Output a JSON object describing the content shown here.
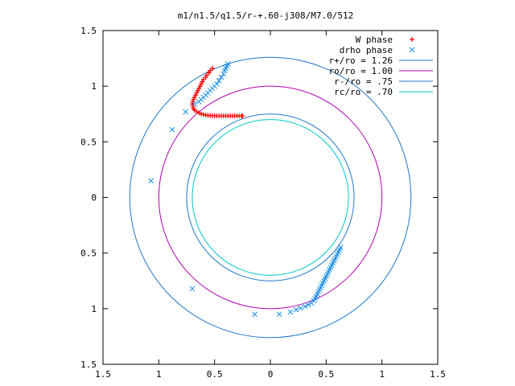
{
  "chart_data": {
    "type": "scatter",
    "title": "m1/n1.5/q1.5/r-+.60-j308/M7.0/512",
    "xlim": [
      -1.5,
      1.5
    ],
    "ylim": [
      -1.5,
      1.5
    ],
    "grid": false,
    "legend_position": "top-right",
    "x_ticks": [
      {
        "value": -1.5,
        "label": "1.5"
      },
      {
        "value": -1,
        "label": "1"
      },
      {
        "value": -0.5,
        "label": "0.5"
      },
      {
        "value": 0,
        "label": "0"
      },
      {
        "value": 0.5,
        "label": "0.5"
      },
      {
        "value": 1,
        "label": "1"
      },
      {
        "value": 1.5,
        "label": "1.5"
      }
    ],
    "y_ticks": [
      {
        "value": 1.5,
        "label": "1.5"
      },
      {
        "value": 1,
        "label": "1"
      },
      {
        "value": 0.5,
        "label": "0.5"
      },
      {
        "value": 0,
        "label": "0"
      },
      {
        "value": -0.5,
        "label": "0.5"
      },
      {
        "value": -1,
        "label": "1"
      },
      {
        "value": -1.5,
        "label": "1.5"
      }
    ],
    "circles": [
      {
        "name": "r+/ro = 1.26",
        "radius": 1.26,
        "color": "#1f77c8"
      },
      {
        "name": "ro/ro = 1.00",
        "radius": 1.0,
        "color": "#b000b0"
      },
      {
        "name": "r-/ro = .75",
        "radius": 0.75,
        "color": "#1f77c8"
      },
      {
        "name": "rc/ro = .70",
        "radius": 0.7,
        "color": "#00c8c8"
      }
    ],
    "series": [
      {
        "name": "W phase",
        "marker": "plus",
        "color": "#ff0000",
        "points": [
          [
            -0.52,
            1.16
          ],
          [
            -0.54,
            1.14
          ],
          [
            -0.55,
            1.12
          ],
          [
            -0.57,
            1.1
          ],
          [
            -0.58,
            1.08
          ],
          [
            -0.6,
            1.06
          ],
          [
            -0.61,
            1.04
          ],
          [
            -0.62,
            1.02
          ],
          [
            -0.63,
            1.0
          ],
          [
            -0.64,
            0.98
          ],
          [
            -0.65,
            0.96
          ],
          [
            -0.66,
            0.94
          ],
          [
            -0.67,
            0.92
          ],
          [
            -0.68,
            0.9
          ],
          [
            -0.69,
            0.88
          ],
          [
            -0.695,
            0.86
          ],
          [
            -0.7,
            0.84
          ],
          [
            -0.695,
            0.82
          ],
          [
            -0.69,
            0.8
          ],
          [
            -0.68,
            0.785
          ],
          [
            -0.66,
            0.77
          ],
          [
            -0.64,
            0.76
          ],
          [
            -0.62,
            0.75
          ],
          [
            -0.6,
            0.745
          ],
          [
            -0.58,
            0.74
          ],
          [
            -0.56,
            0.738
          ],
          [
            -0.54,
            0.736
          ],
          [
            -0.52,
            0.735
          ],
          [
            -0.5,
            0.734
          ],
          [
            -0.48,
            0.733
          ],
          [
            -0.46,
            0.733
          ],
          [
            -0.44,
            0.733
          ],
          [
            -0.42,
            0.733
          ],
          [
            -0.4,
            0.733
          ],
          [
            -0.38,
            0.733
          ],
          [
            -0.36,
            0.733
          ],
          [
            -0.34,
            0.733
          ],
          [
            -0.32,
            0.733
          ],
          [
            -0.3,
            0.733
          ],
          [
            -0.28,
            0.733
          ],
          [
            -0.26,
            0.733
          ],
          [
            -0.25,
            0.733
          ]
        ]
      },
      {
        "name": "drho phase",
        "marker": "cross",
        "color": "#1f8fe6",
        "points": [
          [
            -1.07,
            0.15
          ],
          [
            -0.88,
            0.61
          ],
          [
            -0.76,
            0.77
          ],
          [
            -0.68,
            0.84
          ],
          [
            -0.64,
            0.86
          ],
          [
            -0.62,
            0.88
          ],
          [
            -0.6,
            0.9
          ],
          [
            -0.58,
            0.92
          ],
          [
            -0.56,
            0.94
          ],
          [
            -0.54,
            0.96
          ],
          [
            -0.52,
            0.98
          ],
          [
            -0.5,
            1.0
          ],
          [
            -0.48,
            1.02
          ],
          [
            -0.46,
            1.05
          ],
          [
            -0.44,
            1.08
          ],
          [
            -0.42,
            1.11
          ],
          [
            -0.41,
            1.14
          ],
          [
            -0.4,
            1.16
          ],
          [
            -0.39,
            1.18
          ],
          [
            -0.38,
            1.2
          ],
          [
            -0.7,
            -0.82
          ],
          [
            -0.14,
            -1.05
          ],
          [
            0.08,
            -1.05
          ],
          [
            0.18,
            -1.03
          ],
          [
            0.23,
            -1.01
          ],
          [
            0.27,
            -0.995
          ],
          [
            0.31,
            -0.98
          ],
          [
            0.34,
            -0.965
          ],
          [
            0.37,
            -0.95
          ],
          [
            0.39,
            -0.93
          ],
          [
            0.4,
            -0.91
          ],
          [
            0.41,
            -0.89
          ],
          [
            0.42,
            -0.87
          ],
          [
            0.43,
            -0.85
          ],
          [
            0.44,
            -0.83
          ],
          [
            0.45,
            -0.81
          ],
          [
            0.46,
            -0.79
          ],
          [
            0.47,
            -0.77
          ],
          [
            0.48,
            -0.75
          ],
          [
            0.49,
            -0.73
          ],
          [
            0.5,
            -0.71
          ],
          [
            0.51,
            -0.69
          ],
          [
            0.52,
            -0.67
          ],
          [
            0.53,
            -0.65
          ],
          [
            0.54,
            -0.63
          ],
          [
            0.55,
            -0.61
          ],
          [
            0.56,
            -0.59
          ],
          [
            0.57,
            -0.57
          ],
          [
            0.58,
            -0.55
          ],
          [
            0.59,
            -0.53
          ],
          [
            0.6,
            -0.51
          ],
          [
            0.61,
            -0.49
          ],
          [
            0.62,
            -0.47
          ],
          [
            0.63,
            -0.45
          ]
        ]
      }
    ]
  }
}
